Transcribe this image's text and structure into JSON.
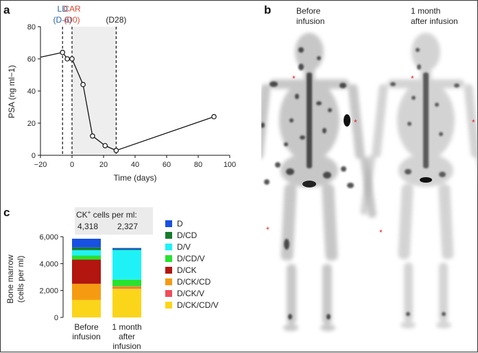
{
  "panels": {
    "a": "a",
    "b": "b",
    "c": "c"
  },
  "colors": {
    "ld": "#1f5fa8",
    "car": "#e0462d",
    "shade": "#eeeeee"
  },
  "chart_data": [
    {
      "type": "line",
      "panel": "a",
      "xlabel": "Time (days)",
      "ylabel": "PSA (ng ml−1)",
      "xlim": [
        -20,
        100
      ],
      "ylim": [
        0,
        80
      ],
      "xticks": [
        -20,
        0,
        20,
        40,
        60,
        80,
        100
      ],
      "xtick_labels": [
        "−20",
        "0",
        "20",
        "40",
        "60",
        "80",
        "100"
      ],
      "yticks": [
        0,
        20,
        40,
        60,
        80
      ],
      "x": [
        -6,
        -3,
        0,
        7,
        13,
        21,
        28,
        90
      ],
      "y": [
        64,
        60,
        60,
        44,
        12,
        6,
        3,
        24
      ],
      "lead_in": {
        "x": [
          -20,
          -6
        ],
        "y": [
          61,
          64
        ]
      },
      "shaded_region": [
        0,
        28
      ],
      "markers": [
        {
          "x": -6,
          "label_line1": "LD",
          "label_line2": "(D-6)",
          "color": "ld"
        },
        {
          "x": 0,
          "label_line1": "CAR",
          "label_line2": "(D0)",
          "color": "car"
        },
        {
          "x": 28,
          "label_line1": "(D28)",
          "color": "dark"
        }
      ]
    },
    {
      "type": "stacked-bar",
      "panel": "c",
      "ylabel_line1": "Bone marrow",
      "ylabel_line2": "(cells per ml)",
      "ylim": [
        0,
        6000
      ],
      "yticks": [
        0,
        2000,
        4000,
        6000
      ],
      "ytick_labels": [
        "0",
        "2,000",
        "4,000",
        "6,000"
      ],
      "categories": [
        {
          "lines": [
            "Before",
            "infusion"
          ]
        },
        {
          "lines": [
            "1 month",
            "after",
            "infusion"
          ]
        }
      ],
      "ck_header": {
        "title": "CK",
        "sup": "+",
        "rest": " cells per ml:",
        "values": [
          "4,318",
          "2,327"
        ]
      },
      "series": [
        {
          "name": "D/CK/CD/V",
          "color": "#fbd51a",
          "values": [
            1300,
            2150
          ]
        },
        {
          "name": "D/CK/V",
          "color": "#f04c5a",
          "values": [
            0,
            80
          ]
        },
        {
          "name": "D/CK/CD",
          "color": "#f59b12",
          "values": [
            1200,
            80
          ]
        },
        {
          "name": "D/CK",
          "color": "#b3150f",
          "values": [
            1800,
            0
          ]
        },
        {
          "name": "D/CD/V",
          "color": "#28e22e",
          "values": [
            300,
            500
          ]
        },
        {
          "name": "D/V",
          "color": "#1ff2f7",
          "values": [
            400,
            2200
          ]
        },
        {
          "name": "D/CD",
          "color": "#157b2a",
          "values": [
            200,
            50
          ]
        },
        {
          "name": "D",
          "color": "#1750e2",
          "values": [
            650,
            100
          ]
        }
      ],
      "legend_order": [
        "D",
        "D/CD",
        "D/V",
        "D/CD/V",
        "D/CK",
        "D/CK/CD",
        "D/CK/V",
        "D/CK/CD/V"
      ]
    }
  ],
  "scan": {
    "label_before": [
      "Before",
      "infusion"
    ],
    "label_after": [
      "1 month",
      "after infusion"
    ],
    "marker_glyph": "*"
  }
}
